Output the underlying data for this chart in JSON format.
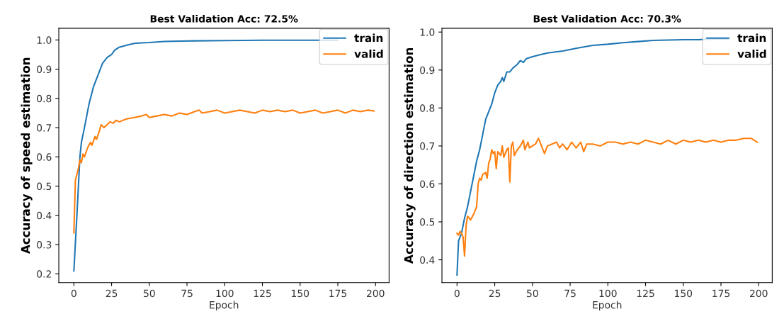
{
  "chart_data": [
    {
      "type": "line",
      "title": "Best Validation Acc: 72.5%",
      "xlabel": "Epoch",
      "ylabel": "Accuracy of speed estimation",
      "xlim": [
        -10,
        209
      ],
      "ylim": [
        0.17,
        1.04
      ],
      "xticks": [
        0,
        25,
        50,
        75,
        100,
        125,
        150,
        175,
        200
      ],
      "yticks": [
        {
          "value": 0.2,
          "label": "0.2"
        },
        {
          "value": 0.3,
          "label": "0.3"
        },
        {
          "value": 0.4,
          "label": "0.4"
        },
        {
          "value": 0.5,
          "label": "0.5"
        },
        {
          "value": 0.6,
          "label": "0.6"
        },
        {
          "value": 0.7,
          "label": "0.7"
        },
        {
          "value": 0.8,
          "label": "0.8"
        },
        {
          "value": 0.9,
          "label": "0.9"
        },
        {
          "value": 1.0,
          "label": "1.0"
        }
      ],
      "legend": "top right",
      "grid": false,
      "series": [
        {
          "name": "train",
          "color": "#1f77b4",
          "x": [
            0,
            2,
            4,
            5,
            7,
            10,
            13,
            16,
            19,
            22,
            25,
            27,
            30,
            35,
            40,
            45,
            50,
            60,
            70,
            80,
            100,
            125,
            150,
            175
          ],
          "values": [
            0.21,
            0.4,
            0.6,
            0.65,
            0.7,
            0.78,
            0.84,
            0.88,
            0.92,
            0.94,
            0.95,
            0.965,
            0.975,
            0.982,
            0.988,
            0.99,
            0.991,
            0.995,
            0.996,
            0.997,
            0.998,
            0.999,
            0.999,
            0.999
          ]
        },
        {
          "name": "valid",
          "color": "#ff7f0e",
          "x": [
            0,
            1,
            3,
            4,
            5,
            6,
            7,
            9,
            11,
            12,
            14,
            15,
            17,
            18,
            20,
            22,
            24,
            26,
            28,
            30,
            35,
            40,
            45,
            48,
            50,
            55,
            60,
            65,
            70,
            75,
            80,
            83,
            85,
            90,
            95,
            100,
            105,
            110,
            115,
            120,
            125,
            130,
            135,
            140,
            145,
            150,
            155,
            160,
            165,
            170,
            175,
            180,
            185,
            190,
            195,
            199
          ],
          "values": [
            0.34,
            0.52,
            0.56,
            0.59,
            0.58,
            0.61,
            0.6,
            0.63,
            0.65,
            0.64,
            0.67,
            0.66,
            0.69,
            0.71,
            0.7,
            0.71,
            0.72,
            0.715,
            0.725,
            0.72,
            0.73,
            0.735,
            0.74,
            0.745,
            0.735,
            0.74,
            0.745,
            0.74,
            0.75,
            0.745,
            0.755,
            0.76,
            0.75,
            0.755,
            0.76,
            0.75,
            0.755,
            0.76,
            0.755,
            0.75,
            0.76,
            0.755,
            0.76,
            0.755,
            0.76,
            0.75,
            0.755,
            0.76,
            0.75,
            0.755,
            0.76,
            0.75,
            0.76,
            0.755,
            0.76,
            0.757
          ]
        }
      ]
    },
    {
      "type": "line",
      "title": "Best Validation Acc: 70.3%",
      "xlabel": "Epoch",
      "ylabel": "Accuracy of direction estimation",
      "xlim": [
        -10,
        209
      ],
      "ylim": [
        0.34,
        1.01
      ],
      "xticks": [
        0,
        25,
        50,
        75,
        100,
        125,
        150,
        175,
        200
      ],
      "yticks": [
        {
          "value": 0.4,
          "label": "0.4"
        },
        {
          "value": 0.5,
          "label": "0.5"
        },
        {
          "value": 0.6,
          "label": "0.6"
        },
        {
          "value": 0.7,
          "label": "0.7"
        },
        {
          "value": 0.8,
          "label": "0.8"
        },
        {
          "value": 0.9,
          "label": "0.9"
        },
        {
          "value": 1.0,
          "label": "1.0"
        }
      ],
      "legend": "top right",
      "grid": false,
      "series": [
        {
          "name": "train",
          "color": "#1f77b4",
          "x": [
            0,
            1,
            3,
            5,
            7,
            9,
            11,
            13,
            15,
            17,
            19,
            21,
            23,
            25,
            27,
            29,
            30,
            31,
            33,
            35,
            37,
            40,
            42,
            44,
            46,
            50,
            55,
            60,
            70,
            80,
            90,
            100,
            110,
            120,
            130,
            140,
            150,
            160,
            170,
            180
          ],
          "values": [
            0.36,
            0.45,
            0.47,
            0.51,
            0.54,
            0.58,
            0.62,
            0.66,
            0.69,
            0.73,
            0.77,
            0.79,
            0.81,
            0.84,
            0.86,
            0.87,
            0.88,
            0.87,
            0.895,
            0.895,
            0.905,
            0.915,
            0.925,
            0.92,
            0.93,
            0.935,
            0.94,
            0.945,
            0.95,
            0.958,
            0.965,
            0.968,
            0.972,
            0.975,
            0.978,
            0.979,
            0.98,
            0.98,
            0.982,
            0.982
          ]
        },
        {
          "name": "valid",
          "color": "#ff7f0e",
          "x": [
            0,
            1,
            2,
            3,
            4,
            5,
            6,
            7,
            9,
            11,
            13,
            14,
            15,
            16,
            17,
            19,
            20,
            21,
            22,
            23,
            24,
            25,
            26,
            27,
            29,
            30,
            31,
            33,
            34,
            35,
            36,
            37,
            38,
            40,
            42,
            44,
            45,
            47,
            48,
            50,
            52,
            54,
            56,
            58,
            60,
            63,
            66,
            68,
            70,
            73,
            76,
            79,
            82,
            84,
            86,
            90,
            95,
            100,
            105,
            110,
            115,
            120,
            125,
            130,
            135,
            140,
            145,
            150,
            155,
            160,
            165,
            170,
            175,
            180,
            185,
            190,
            195,
            199
          ],
          "values": [
            0.47,
            0.465,
            0.475,
            0.47,
            0.46,
            0.41,
            0.49,
            0.515,
            0.505,
            0.52,
            0.54,
            0.6,
            0.615,
            0.61,
            0.625,
            0.63,
            0.615,
            0.655,
            0.665,
            0.69,
            0.68,
            0.685,
            0.64,
            0.685,
            0.675,
            0.7,
            0.67,
            0.69,
            0.695,
            0.605,
            0.7,
            0.71,
            0.675,
            0.69,
            0.7,
            0.715,
            0.69,
            0.71,
            0.695,
            0.7,
            0.705,
            0.72,
            0.7,
            0.68,
            0.7,
            0.705,
            0.71,
            0.695,
            0.705,
            0.69,
            0.71,
            0.695,
            0.71,
            0.685,
            0.705,
            0.705,
            0.7,
            0.71,
            0.71,
            0.705,
            0.71,
            0.705,
            0.715,
            0.71,
            0.705,
            0.715,
            0.705,
            0.715,
            0.71,
            0.715,
            0.71,
            0.715,
            0.71,
            0.715,
            0.715,
            0.72,
            0.72,
            0.71
          ]
        }
      ]
    }
  ]
}
